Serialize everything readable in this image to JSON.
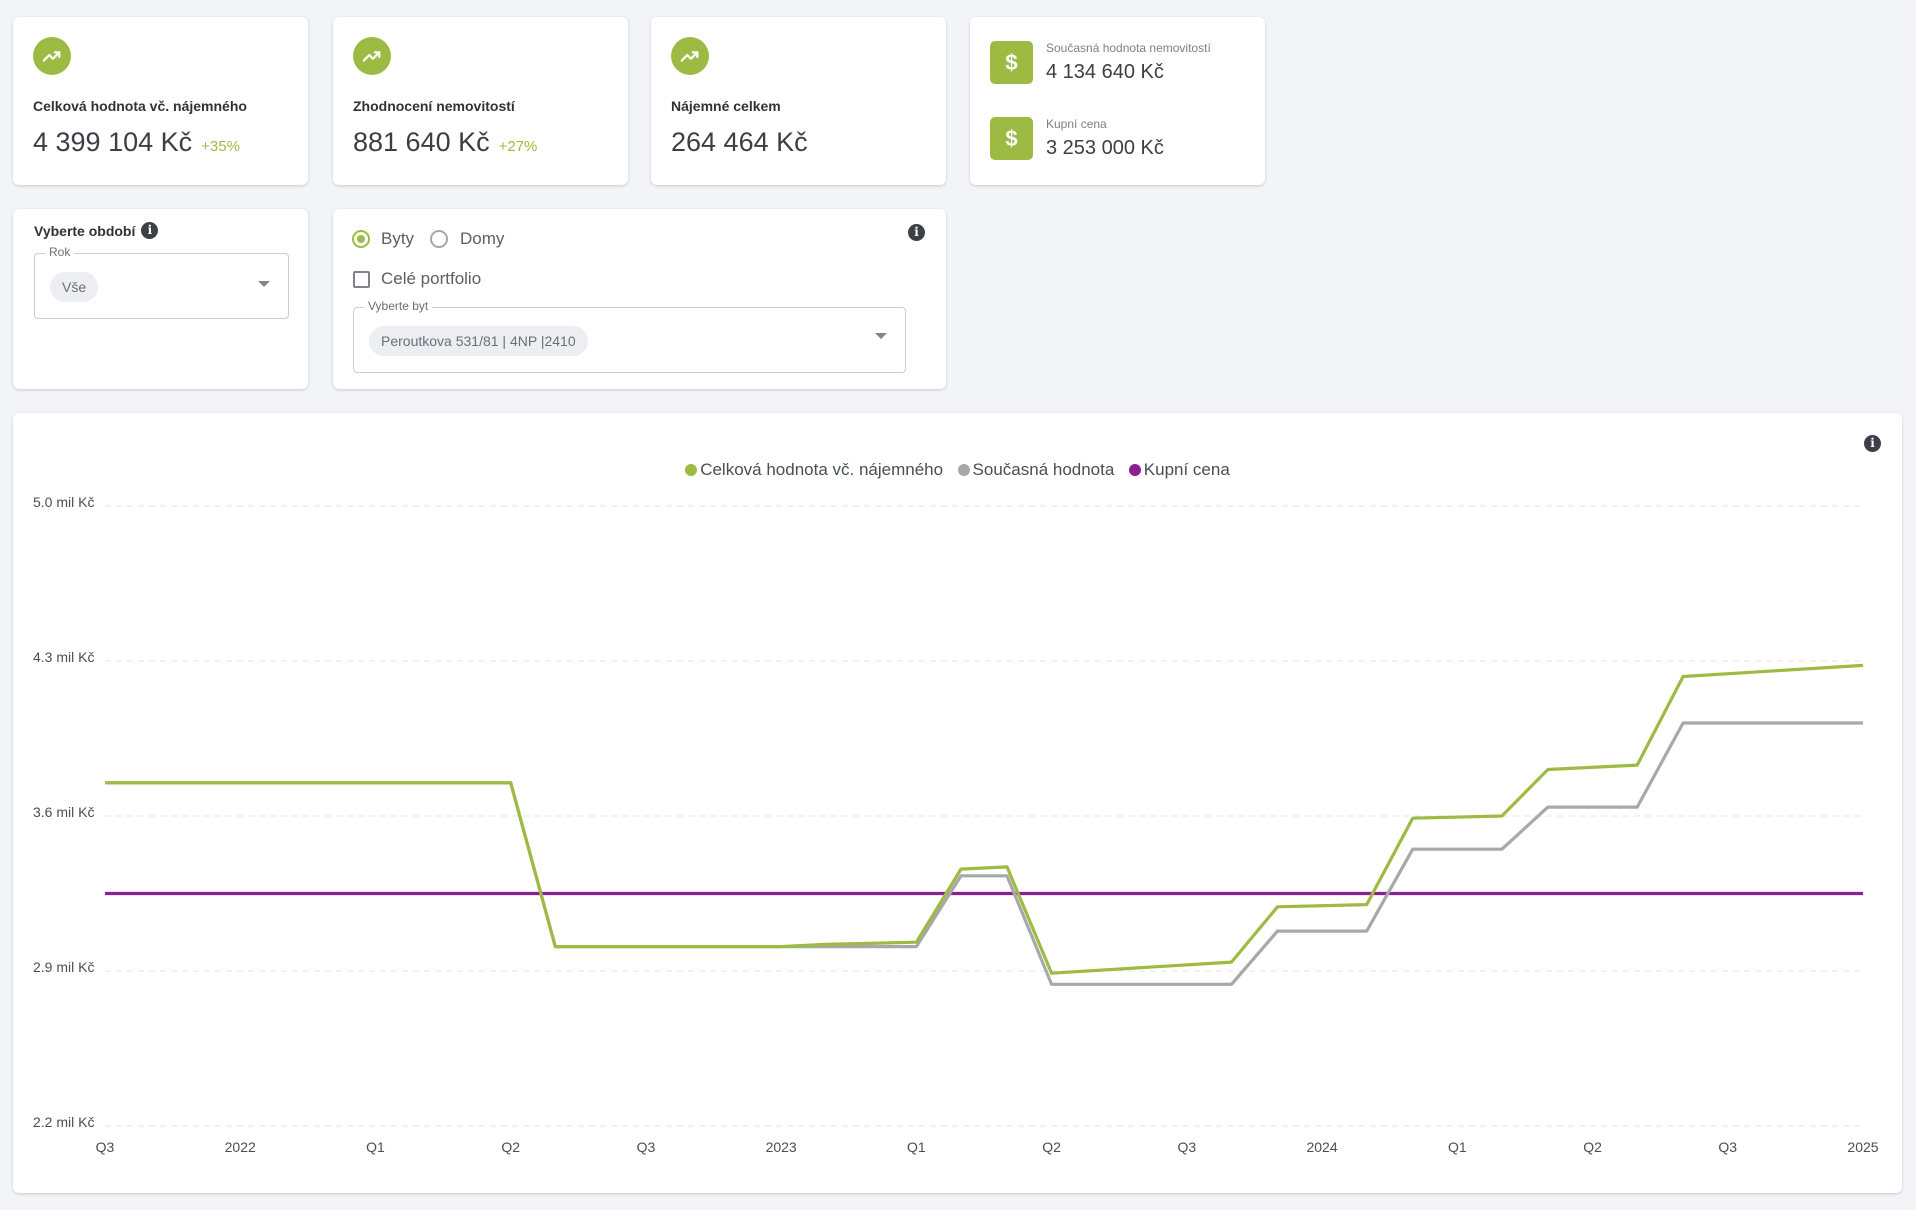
{
  "colors": {
    "accent": "#9dbb43",
    "gray_series": "#a6a8ab",
    "purple_series": "#8b1f94"
  },
  "stats": [
    {
      "icon": "trending-up-icon",
      "title": "Celková hodnota vč. nájemného",
      "value": "4 399 104 Kč",
      "change": "+35%"
    },
    {
      "icon": "trending-up-icon",
      "title": "Zhodnocení nemovitostí",
      "value": "881 640 Kč",
      "change": "+27%"
    },
    {
      "icon": "trending-up-icon",
      "title": "Nájemné celkem",
      "value": "264 464 Kč",
      "change": ""
    }
  ],
  "values_card": {
    "current": {
      "icon": "dollar-icon",
      "label": "Současná hodnota nemovitostí",
      "value": "4 134 640 Kč"
    },
    "purchase": {
      "icon": "dollar-icon",
      "label": "Kupní cena",
      "value": "3 253 000 Kč"
    }
  },
  "period": {
    "title": "Vyberte období",
    "info_icon": "info-icon",
    "field_label": "Rok",
    "selected": "Vše"
  },
  "property": {
    "type_options": [
      {
        "label": "Byty",
        "checked": true
      },
      {
        "label": "Domy",
        "checked": false
      }
    ],
    "whole_portfolio_label": "Celé portfolio",
    "whole_portfolio_checked": false,
    "field_label": "Vyberte byt",
    "selected": "Peroutkova 531/81 | 4NP |2410"
  },
  "chart_data": {
    "type": "line",
    "title": "",
    "xlabel": "",
    "ylabel": "",
    "x_tick_labels": [
      "Q3",
      "2022",
      "Q1",
      "Q2",
      "Q3",
      "2023",
      "Q1",
      "Q2",
      "Q3",
      "2024",
      "Q1",
      "Q2",
      "Q3",
      "2025"
    ],
    "x_range": [
      0,
      13
    ],
    "y_tick_labels": [
      "2.2 mil Kč",
      "2.9 mil Kč",
      "3.6 mil Kč",
      "4.3 mil Kč",
      "5.0 mil Kč"
    ],
    "y_ticks": [
      2.2,
      2.9,
      3.6,
      4.3,
      5.0
    ],
    "ylim": [
      2.2,
      5.0
    ],
    "y_unit": "mil Kč",
    "grid": "horizontal dashed",
    "legend_position": "top-center",
    "series": [
      {
        "name": "Celková hodnota vč. nájemného",
        "color": "#9dbb43",
        "points": [
          [
            0,
            3.75
          ],
          [
            3,
            3.75
          ],
          [
            3.33,
            3.01
          ],
          [
            5,
            3.01
          ],
          [
            5.33,
            3.02
          ],
          [
            6,
            3.03
          ],
          [
            6.33,
            3.36
          ],
          [
            6.67,
            3.37
          ],
          [
            7,
            2.89
          ],
          [
            8.33,
            2.94
          ],
          [
            8.67,
            3.19
          ],
          [
            9.33,
            3.2
          ],
          [
            9.67,
            3.59
          ],
          [
            10.33,
            3.6
          ],
          [
            10.67,
            3.81
          ],
          [
            11.33,
            3.83
          ],
          [
            11.67,
            4.23
          ],
          [
            13,
            4.28
          ]
        ]
      },
      {
        "name": "Současná hodnota",
        "color": "#a6a8ab",
        "points": [
          [
            0,
            3.75
          ],
          [
            3,
            3.75
          ],
          [
            3.33,
            3.01
          ],
          [
            6,
            3.01
          ],
          [
            6.33,
            3.33
          ],
          [
            6.67,
            3.33
          ],
          [
            7,
            2.84
          ],
          [
            8.33,
            2.84
          ],
          [
            8.67,
            3.08
          ],
          [
            9.33,
            3.08
          ],
          [
            9.67,
            3.45
          ],
          [
            10.33,
            3.45
          ],
          [
            10.67,
            3.64
          ],
          [
            11.33,
            3.64
          ],
          [
            11.67,
            4.02
          ],
          [
            13,
            4.02
          ]
        ]
      },
      {
        "name": "Kupní cena",
        "color": "#8b1f94",
        "points": [
          [
            0,
            3.25
          ],
          [
            13,
            3.25
          ]
        ]
      }
    ]
  },
  "chart_info_icon": "info-icon"
}
